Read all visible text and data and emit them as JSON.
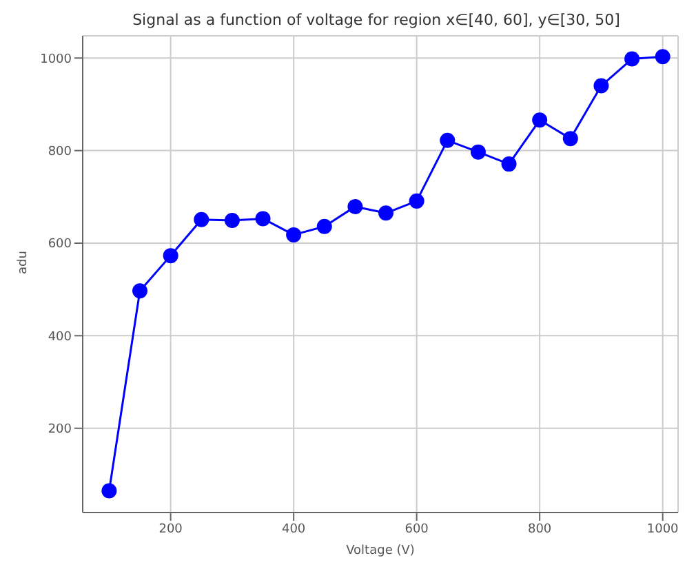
{
  "chart_data": {
    "type": "line",
    "title": "Signal as a function of voltage for region x∈[40, 60], y∈[30, 50]",
    "xlabel": "Voltage (V)",
    "ylabel": "adu",
    "x": [
      100,
      150,
      200,
      250,
      300,
      350,
      400,
      450,
      500,
      550,
      600,
      650,
      700,
      750,
      800,
      850,
      900,
      950,
      1000
    ],
    "series": [
      {
        "color": "#0000ff",
        "values": [
          65,
          497,
          573,
          651,
          649,
          653,
          618,
          636,
          679,
          665,
          691,
          822,
          797,
          771,
          866,
          826,
          940,
          998,
          1003
        ]
      }
    ],
    "xlim": [
      57,
      1025
    ],
    "xticks": [
      200,
      400,
      600,
      800,
      1000
    ],
    "ylim": [
      18,
      1048
    ],
    "yticks": [
      200,
      400,
      600,
      800,
      1000
    ],
    "grid": true,
    "marker": "circle",
    "line_style": "solid"
  }
}
